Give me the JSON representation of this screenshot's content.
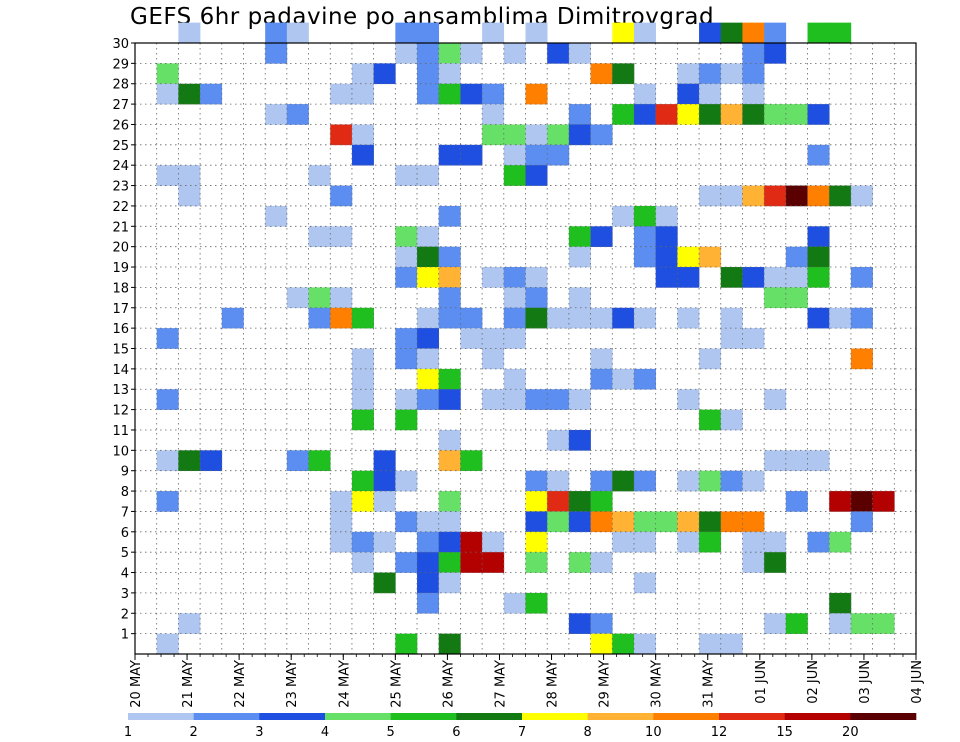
{
  "chart_data": {
    "type": "heatmap",
    "title": "GEFS 6hr padavine po ansamblima Dimitrovgrad",
    "x_ticks": [
      "20 MAY",
      "21 MAY",
      "22 MAY",
      "23 MAY",
      "24 MAY",
      "25 MAY",
      "26 MAY",
      "27 MAY",
      "28 MAY",
      "29 MAY",
      "30 MAY",
      "31 MAY",
      "01 JUN",
      "02 JUN",
      "03 JUN",
      "04 JUN"
    ],
    "y_ticks": [
      "1",
      "2",
      "3",
      "4",
      "5",
      "6",
      "7",
      "8",
      "9",
      "10",
      "11",
      "12",
      "13",
      "14",
      "15",
      "16",
      "17",
      "18",
      "19",
      "20",
      "21",
      "22",
      "23",
      "24",
      "25",
      "26",
      "27",
      "28",
      "29",
      "30"
    ],
    "ylim": [
      0,
      30
    ],
    "x_step": "6hr",
    "grid": true,
    "colorbar": {
      "levels": [
        "1",
        "2",
        "3",
        "4",
        "5",
        "6",
        "7",
        "8",
        "10",
        "12",
        "15",
        "20"
      ],
      "colors": [
        "#aec6f0",
        "#5b8ef0",
        "#1f4fe0",
        "#66e066",
        "#1fbf1f",
        "#137a13",
        "#ffff00",
        "#ffb233",
        "#ff7f00",
        "#e02a14",
        "#b30000",
        "#5a0000"
      ]
    },
    "cells": [
      [
        2,
        30,
        0
      ],
      [
        6,
        30,
        1
      ],
      [
        7,
        30,
        0
      ],
      [
        12,
        30,
        1
      ],
      [
        13,
        30,
        1
      ],
      [
        16,
        30,
        0
      ],
      [
        18,
        30,
        0
      ],
      [
        22,
        30,
        6
      ],
      [
        23,
        30,
        0
      ],
      [
        26,
        30,
        2
      ],
      [
        27,
        30,
        5
      ],
      [
        28,
        30,
        8
      ],
      [
        31,
        30,
        4
      ],
      [
        32,
        30,
        4
      ],
      [
        29,
        30,
        1
      ],
      [
        6,
        29,
        1
      ],
      [
        12,
        29,
        0
      ],
      [
        13,
        29,
        1
      ],
      [
        14,
        29,
        3
      ],
      [
        15,
        29,
        0
      ],
      [
        17,
        29,
        0
      ],
      [
        19,
        29,
        2
      ],
      [
        20,
        29,
        0
      ],
      [
        28,
        29,
        1
      ],
      [
        29,
        29,
        2
      ],
      [
        1,
        28,
        3
      ],
      [
        10,
        28,
        0
      ],
      [
        11,
        28,
        2
      ],
      [
        13,
        28,
        1
      ],
      [
        14,
        28,
        0
      ],
      [
        21,
        28,
        8
      ],
      [
        22,
        28,
        5
      ],
      [
        25,
        28,
        0
      ],
      [
        26,
        28,
        1
      ],
      [
        27,
        28,
        0
      ],
      [
        28,
        28,
        1
      ],
      [
        1,
        27,
        0
      ],
      [
        2,
        27,
        5
      ],
      [
        3,
        27,
        1
      ],
      [
        9,
        27,
        0
      ],
      [
        10,
        27,
        0
      ],
      [
        13,
        27,
        1
      ],
      [
        14,
        27,
        4
      ],
      [
        15,
        27,
        2
      ],
      [
        16,
        27,
        1
      ],
      [
        18,
        27,
        8
      ],
      [
        23,
        27,
        0
      ],
      [
        25,
        27,
        2
      ],
      [
        26,
        27,
        0
      ],
      [
        28,
        27,
        0
      ],
      [
        6,
        26,
        0
      ],
      [
        7,
        26,
        1
      ],
      [
        16,
        26,
        0
      ],
      [
        20,
        26,
        1
      ],
      [
        22,
        26,
        4
      ],
      [
        23,
        26,
        2
      ],
      [
        24,
        26,
        9
      ],
      [
        25,
        26,
        6
      ],
      [
        26,
        26,
        5
      ],
      [
        27,
        26,
        7
      ],
      [
        28,
        26,
        5
      ],
      [
        29,
        26,
        3
      ],
      [
        30,
        26,
        3
      ],
      [
        31,
        26,
        2
      ],
      [
        9,
        25,
        9
      ],
      [
        10,
        25,
        0
      ],
      [
        16,
        25,
        3
      ],
      [
        17,
        25,
        3
      ],
      [
        18,
        25,
        0
      ],
      [
        19,
        25,
        3
      ],
      [
        20,
        25,
        2
      ],
      [
        21,
        25,
        1
      ],
      [
        10,
        24,
        2
      ],
      [
        14,
        24,
        2
      ],
      [
        15,
        24,
        2
      ],
      [
        17,
        24,
        0
      ],
      [
        18,
        24,
        1
      ],
      [
        19,
        24,
        1
      ],
      [
        31,
        24,
        1
      ],
      [
        1,
        23,
        0
      ],
      [
        2,
        23,
        0
      ],
      [
        8,
        23,
        0
      ],
      [
        12,
        23,
        0
      ],
      [
        13,
        23,
        0
      ],
      [
        17,
        23,
        4
      ],
      [
        18,
        23,
        2
      ],
      [
        2,
        22,
        0
      ],
      [
        9,
        22,
        1
      ],
      [
        26,
        22,
        0
      ],
      [
        27,
        22,
        0
      ],
      [
        28,
        22,
        7
      ],
      [
        29,
        22,
        9
      ],
      [
        30,
        22,
        11
      ],
      [
        31,
        22,
        8
      ],
      [
        32,
        22,
        5
      ],
      [
        33,
        22,
        0
      ],
      [
        6,
        21,
        0
      ],
      [
        14,
        21,
        1
      ],
      [
        22,
        21,
        0
      ],
      [
        23,
        21,
        4
      ],
      [
        24,
        21,
        0
      ],
      [
        8,
        20,
        0
      ],
      [
        9,
        20,
        0
      ],
      [
        12,
        20,
        3
      ],
      [
        13,
        20,
        0
      ],
      [
        20,
        20,
        4
      ],
      [
        21,
        20,
        2
      ],
      [
        23,
        20,
        1
      ],
      [
        24,
        20,
        2
      ],
      [
        31,
        20,
        2
      ],
      [
        12,
        19,
        0
      ],
      [
        13,
        19,
        5
      ],
      [
        14,
        19,
        1
      ],
      [
        20,
        19,
        0
      ],
      [
        23,
        19,
        1
      ],
      [
        24,
        19,
        2
      ],
      [
        25,
        19,
        6
      ],
      [
        26,
        19,
        7
      ],
      [
        30,
        19,
        1
      ],
      [
        31,
        19,
        5
      ],
      [
        12,
        18,
        1
      ],
      [
        13,
        18,
        6
      ],
      [
        14,
        18,
        7
      ],
      [
        16,
        18,
        0
      ],
      [
        17,
        18,
        1
      ],
      [
        18,
        18,
        0
      ],
      [
        24,
        18,
        2
      ],
      [
        25,
        18,
        2
      ],
      [
        27,
        18,
        5
      ],
      [
        28,
        18,
        2
      ],
      [
        29,
        18,
        0
      ],
      [
        30,
        18,
        0
      ],
      [
        31,
        18,
        4
      ],
      [
        33,
        18,
        1
      ],
      [
        7,
        17,
        0
      ],
      [
        8,
        17,
        3
      ],
      [
        9,
        17,
        0
      ],
      [
        14,
        17,
        1
      ],
      [
        17,
        17,
        0
      ],
      [
        18,
        17,
        1
      ],
      [
        20,
        17,
        0
      ],
      [
        29,
        17,
        3
      ],
      [
        30,
        17,
        3
      ],
      [
        4,
        16,
        1
      ],
      [
        8,
        16,
        1
      ],
      [
        9,
        16,
        8
      ],
      [
        10,
        16,
        4
      ],
      [
        13,
        16,
        0
      ],
      [
        14,
        16,
        1
      ],
      [
        15,
        16,
        1
      ],
      [
        17,
        16,
        1
      ],
      [
        18,
        16,
        5
      ],
      [
        19,
        16,
        0
      ],
      [
        20,
        16,
        0
      ],
      [
        21,
        16,
        0
      ],
      [
        22,
        16,
        2
      ],
      [
        23,
        16,
        0
      ],
      [
        25,
        16,
        0
      ],
      [
        27,
        16,
        0
      ],
      [
        31,
        16,
        2
      ],
      [
        32,
        16,
        0
      ],
      [
        33,
        16,
        1
      ],
      [
        1,
        15,
        1
      ],
      [
        12,
        15,
        1
      ],
      [
        13,
        15,
        2
      ],
      [
        15,
        15,
        0
      ],
      [
        16,
        15,
        0
      ],
      [
        17,
        15,
        0
      ],
      [
        27,
        15,
        0
      ],
      [
        28,
        15,
        0
      ],
      [
        10,
        14,
        0
      ],
      [
        12,
        14,
        1
      ],
      [
        13,
        14,
        0
      ],
      [
        16,
        14,
        0
      ],
      [
        21,
        14,
        0
      ],
      [
        26,
        14,
        0
      ],
      [
        33,
        14,
        8
      ],
      [
        10,
        13,
        0
      ],
      [
        13,
        13,
        6
      ],
      [
        14,
        13,
        4
      ],
      [
        17,
        13,
        0
      ],
      [
        21,
        13,
        1
      ],
      [
        22,
        13,
        0
      ],
      [
        23,
        13,
        1
      ],
      [
        1,
        12,
        1
      ],
      [
        10,
        12,
        0
      ],
      [
        12,
        12,
        0
      ],
      [
        13,
        12,
        1
      ],
      [
        14,
        12,
        2
      ],
      [
        16,
        12,
        0
      ],
      [
        17,
        12,
        0
      ],
      [
        18,
        12,
        1
      ],
      [
        19,
        12,
        1
      ],
      [
        20,
        12,
        0
      ],
      [
        25,
        12,
        0
      ],
      [
        29,
        12,
        0
      ],
      [
        10,
        11,
        4
      ],
      [
        12,
        11,
        4
      ],
      [
        26,
        11,
        4
      ],
      [
        27,
        11,
        0
      ],
      [
        14,
        10,
        0
      ],
      [
        19,
        10,
        0
      ],
      [
        20,
        10,
        2
      ],
      [
        1,
        9,
        0
      ],
      [
        2,
        9,
        5
      ],
      [
        3,
        9,
        2
      ],
      [
        7,
        9,
        1
      ],
      [
        8,
        9,
        4
      ],
      [
        11,
        9,
        2
      ],
      [
        14,
        9,
        7
      ],
      [
        15,
        9,
        4
      ],
      [
        29,
        9,
        0
      ],
      [
        30,
        9,
        0
      ],
      [
        31,
        9,
        0
      ],
      [
        10,
        8,
        4
      ],
      [
        11,
        8,
        2
      ],
      [
        12,
        8,
        0
      ],
      [
        18,
        8,
        1
      ],
      [
        19,
        8,
        0
      ],
      [
        21,
        8,
        1
      ],
      [
        22,
        8,
        5
      ],
      [
        23,
        8,
        1
      ],
      [
        25,
        8,
        0
      ],
      [
        26,
        8,
        3
      ],
      [
        27,
        8,
        1
      ],
      [
        28,
        8,
        0
      ],
      [
        1,
        7,
        1
      ],
      [
        9,
        7,
        0
      ],
      [
        10,
        7,
        6
      ],
      [
        11,
        7,
        0
      ],
      [
        14,
        7,
        3
      ],
      [
        18,
        7,
        6
      ],
      [
        19,
        7,
        9
      ],
      [
        20,
        7,
        5
      ],
      [
        21,
        7,
        4
      ],
      [
        30,
        7,
        1
      ],
      [
        32,
        7,
        10
      ],
      [
        33,
        7,
        11
      ],
      [
        34,
        7,
        10
      ],
      [
        9,
        6,
        0
      ],
      [
        12,
        6,
        1
      ],
      [
        13,
        6,
        0
      ],
      [
        14,
        6,
        0
      ],
      [
        18,
        6,
        2
      ],
      [
        19,
        6,
        3
      ],
      [
        20,
        6,
        2
      ],
      [
        21,
        6,
        8
      ],
      [
        22,
        6,
        7
      ],
      [
        23,
        6,
        3
      ],
      [
        24,
        6,
        3
      ],
      [
        25,
        6,
        7
      ],
      [
        26,
        6,
        5
      ],
      [
        27,
        6,
        8
      ],
      [
        28,
        6,
        8
      ],
      [
        33,
        6,
        1
      ],
      [
        9,
        5,
        0
      ],
      [
        10,
        5,
        1
      ],
      [
        11,
        5,
        0
      ],
      [
        13,
        5,
        1
      ],
      [
        14,
        5,
        2
      ],
      [
        15,
        5,
        10
      ],
      [
        16,
        5,
        0
      ],
      [
        18,
        5,
        6
      ],
      [
        22,
        5,
        0
      ],
      [
        23,
        5,
        0
      ],
      [
        25,
        5,
        0
      ],
      [
        26,
        5,
        4
      ],
      [
        28,
        5,
        0
      ],
      [
        29,
        5,
        0
      ],
      [
        31,
        5,
        1
      ],
      [
        32,
        5,
        3
      ],
      [
        10,
        4,
        0
      ],
      [
        12,
        4,
        1
      ],
      [
        13,
        4,
        2
      ],
      [
        14,
        4,
        4
      ],
      [
        15,
        4,
        10
      ],
      [
        16,
        4,
        10
      ],
      [
        18,
        4,
        3
      ],
      [
        20,
        4,
        3
      ],
      [
        21,
        4,
        0
      ],
      [
        28,
        4,
        0
      ],
      [
        29,
        4,
        5
      ],
      [
        11,
        3,
        5
      ],
      [
        13,
        3,
        2
      ],
      [
        14,
        3,
        0
      ],
      [
        23,
        3,
        0
      ],
      [
        13,
        2,
        1
      ],
      [
        17,
        2,
        0
      ],
      [
        18,
        2,
        4
      ],
      [
        32,
        2,
        5
      ],
      [
        2,
        1,
        0
      ],
      [
        20,
        1,
        2
      ],
      [
        21,
        1,
        1
      ],
      [
        29,
        1,
        0
      ],
      [
        30,
        1,
        4
      ],
      [
        32,
        1,
        0
      ],
      [
        33,
        1,
        3
      ],
      [
        34,
        1,
        3
      ],
      [
        1,
        0,
        0
      ],
      [
        12,
        0,
        4
      ],
      [
        14,
        0,
        5
      ],
      [
        21,
        0,
        6
      ],
      [
        22,
        0,
        4
      ],
      [
        23,
        0,
        0
      ],
      [
        26,
        0,
        0
      ],
      [
        27,
        0,
        0
      ]
    ]
  }
}
